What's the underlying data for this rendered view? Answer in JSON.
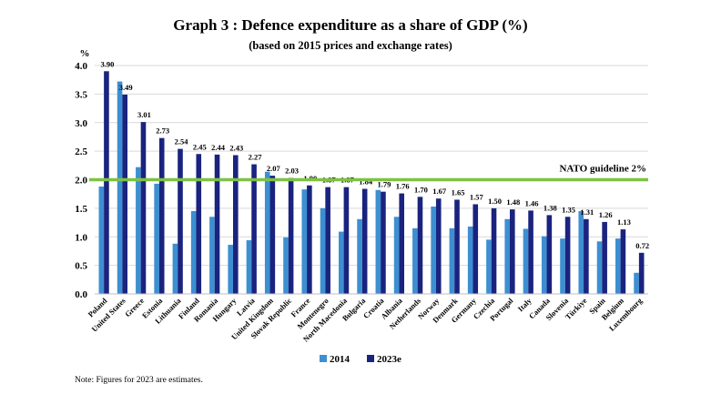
{
  "chart_data": {
    "type": "bar",
    "title": "Graph 3 : Defence expenditure as a share of GDP (%)",
    "subtitle": "(based on 2015 prices and exchange rates)",
    "ylabel": "%",
    "ylim": [
      0,
      4.0
    ],
    "yticks": [
      "0.0",
      "0.5",
      "1.0",
      "1.5",
      "2.0",
      "2.5",
      "3.0",
      "3.5",
      "4.0"
    ],
    "grid": true,
    "legend_position": "bottom",
    "categories": [
      "Poland",
      "United States",
      "Greece",
      "Estonia",
      "Lithuania",
      "Finland",
      "Romania",
      "Hungary",
      "Latvia",
      "United Kingdom",
      "Slovak Republic",
      "France",
      "Montenegro",
      "North Macedonia",
      "Bulgaria",
      "Croatia",
      "Albania",
      "Netherlands",
      "Norway",
      "Denmark",
      "Germany",
      "Czechia",
      "Portugal",
      "Italy",
      "Canada",
      "Slovenia",
      "Türkiye",
      "Spain",
      "Belgium",
      "Luxembourg"
    ],
    "series": [
      {
        "name": "2014",
        "color": "#3d8fd1",
        "values": [
          1.88,
          3.72,
          2.22,
          1.93,
          0.88,
          1.45,
          1.35,
          0.86,
          0.94,
          2.14,
          0.99,
          1.83,
          1.5,
          1.09,
          1.31,
          1.82,
          1.35,
          1.15,
          1.53,
          1.15,
          1.18,
          0.95,
          1.31,
          1.14,
          1.01,
          0.97,
          1.45,
          0.92,
          0.97,
          0.37
        ]
      },
      {
        "name": "2023e",
        "color": "#1a237e",
        "values": [
          3.9,
          3.49,
          3.01,
          2.73,
          2.54,
          2.45,
          2.44,
          2.43,
          2.27,
          2.07,
          2.03,
          1.9,
          1.87,
          1.87,
          1.84,
          1.79,
          1.76,
          1.7,
          1.67,
          1.65,
          1.57,
          1.5,
          1.48,
          1.46,
          1.38,
          1.35,
          1.31,
          1.26,
          1.13,
          0.72
        ],
        "labels": [
          "3.90",
          "3.49",
          "3.01",
          "2.73",
          "2.54",
          "2.45",
          "2.44",
          "2.43",
          "2.27",
          "2.07",
          "2.03",
          "1.90",
          "1.87",
          "1.87",
          "1.84",
          "1.79",
          "1.76",
          "1.70",
          "1.67",
          "1.65",
          "1.57",
          "1.50",
          "1.48",
          "1.46",
          "1.38",
          "1.35",
          "1.31",
          "1.26",
          "1.13",
          "0.72"
        ]
      }
    ],
    "reference_line": {
      "value": 2.0,
      "label": "NATO guideline 2%",
      "color": "#7dc242"
    },
    "note": "Note: Figures for 2023 are estimates."
  }
}
